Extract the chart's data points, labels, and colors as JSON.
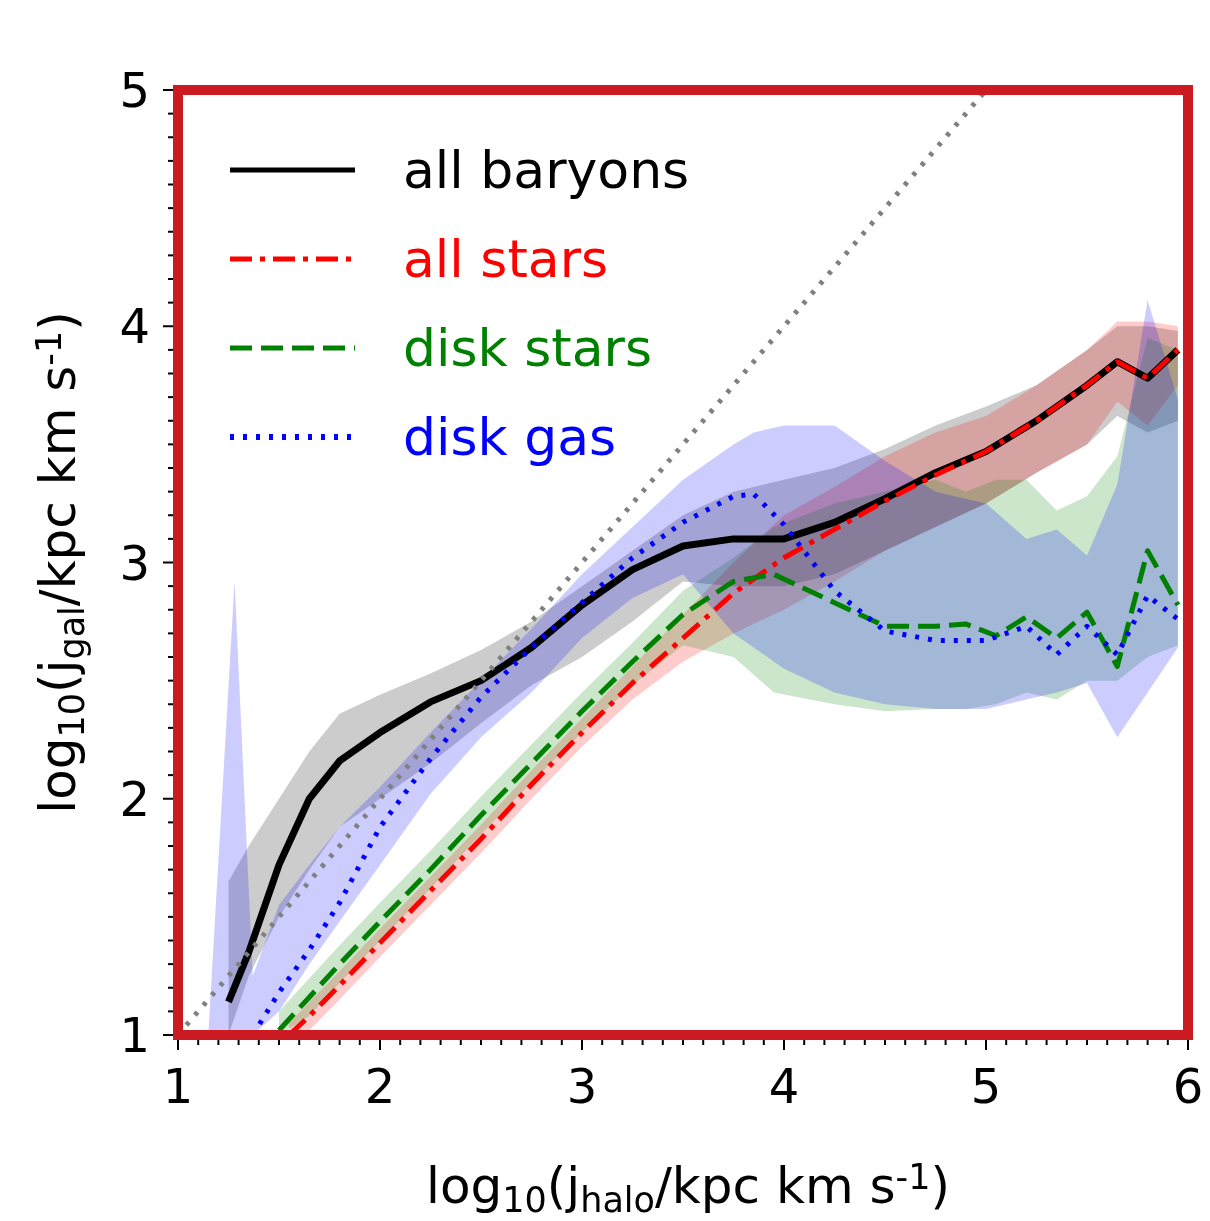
{
  "chart_data": {
    "type": "line",
    "xlabel": "log$_{10}$(j$_{halo}$/kpc km s$^{-1}$)",
    "ylabel": "log$_{10}$(j$_{gal}$/kpc km s$^{-1}$)",
    "xlim": [
      1,
      6
    ],
    "xticks": [
      1,
      2,
      3,
      4,
      5,
      6
    ],
    "ylim": [
      1,
      5
    ],
    "yticks": [
      1,
      2,
      3,
      4,
      5
    ],
    "grid": false,
    "legend": "top left",
    "series": [
      {
        "name": "all baryons",
        "color": "#000000",
        "line_style": "solid",
        "x": [
          1.25,
          1.35,
          1.5,
          1.65,
          1.8,
          2.0,
          2.25,
          2.5,
          2.75,
          3.0,
          3.25,
          3.5,
          3.75,
          4.0,
          4.25,
          4.5,
          4.75,
          5.0,
          5.25,
          5.5,
          5.65,
          5.8,
          5.95
        ],
        "values": [
          1.14,
          1.35,
          1.72,
          2.0,
          2.16,
          2.28,
          2.41,
          2.5,
          2.64,
          2.82,
          2.97,
          3.07,
          3.1,
          3.1,
          3.17,
          3.27,
          3.38,
          3.47,
          3.6,
          3.75,
          3.85,
          3.78,
          3.9
        ],
        "upper": [
          1.65,
          1.8,
          2.0,
          2.2,
          2.36,
          2.44,
          2.53,
          2.63,
          2.75,
          2.9,
          3.05,
          3.2,
          3.3,
          3.35,
          3.4,
          3.48,
          3.58,
          3.66,
          3.75,
          3.9,
          4.0,
          4.0,
          3.98
        ],
        "lower": [
          1.0,
          1.25,
          1.5,
          1.7,
          1.88,
          2.0,
          2.15,
          2.32,
          2.48,
          2.6,
          2.75,
          2.92,
          2.9,
          2.9,
          2.95,
          3.05,
          3.15,
          3.25,
          3.38,
          3.5,
          3.62,
          3.55,
          3.6
        ]
      },
      {
        "name": "all stars",
        "color": "#ff0000",
        "line_style": "dashdot",
        "x": [
          1.55,
          1.65,
          1.8,
          2.0,
          2.25,
          2.5,
          2.75,
          3.0,
          3.25,
          3.5,
          3.75,
          4.0,
          4.25,
          4.5,
          4.75,
          5.0,
          5.25,
          5.5,
          5.65,
          5.8,
          5.95
        ],
        "values": [
          1.0,
          1.08,
          1.21,
          1.39,
          1.61,
          1.83,
          2.06,
          2.28,
          2.49,
          2.68,
          2.87,
          3.02,
          3.14,
          3.26,
          3.37,
          3.47,
          3.6,
          3.75,
          3.85,
          3.78,
          3.9
        ],
        "upper": [
          1.05,
          1.14,
          1.27,
          1.45,
          1.67,
          1.89,
          2.12,
          2.34,
          2.56,
          2.78,
          3.0,
          3.2,
          3.32,
          3.45,
          3.55,
          3.62,
          3.75,
          3.9,
          4.02,
          4.02,
          4.0
        ],
        "lower": [
          1.0,
          1.02,
          1.15,
          1.33,
          1.55,
          1.77,
          2.0,
          2.22,
          2.42,
          2.58,
          2.7,
          2.8,
          2.92,
          3.05,
          3.15,
          3.25,
          3.38,
          3.5,
          3.68,
          3.58,
          3.75
        ]
      },
      {
        "name": "disk stars",
        "color": "#008000",
        "line_style": "dashed",
        "x": [
          1.5,
          1.65,
          1.8,
          2.0,
          2.25,
          2.5,
          2.75,
          3.0,
          3.25,
          3.5,
          3.75,
          3.95,
          4.25,
          4.5,
          4.75,
          4.9,
          5.05,
          5.2,
          5.35,
          5.5,
          5.65,
          5.8,
          5.95
        ],
        "values": [
          1.02,
          1.16,
          1.3,
          1.48,
          1.7,
          1.93,
          2.15,
          2.37,
          2.58,
          2.78,
          2.92,
          2.95,
          2.83,
          2.73,
          2.73,
          2.74,
          2.69,
          2.77,
          2.68,
          2.79,
          2.56,
          3.05,
          2.82
        ],
        "upper": [
          1.1,
          1.24,
          1.38,
          1.56,
          1.78,
          2.01,
          2.23,
          2.45,
          2.66,
          2.88,
          3.02,
          3.15,
          3.25,
          3.3,
          3.35,
          3.3,
          3.35,
          3.35,
          3.22,
          3.28,
          3.45,
          3.95,
          3.9
        ],
        "lower": [
          1.0,
          1.08,
          1.22,
          1.4,
          1.62,
          1.85,
          2.07,
          2.28,
          2.48,
          2.65,
          2.6,
          2.45,
          2.4,
          2.37,
          2.38,
          2.38,
          2.4,
          2.45,
          2.42,
          2.5,
          2.5,
          2.6,
          2.65
        ]
      },
      {
        "name": "disk gas",
        "color": "#0000ff",
        "line_style": "dotted",
        "x": [
          1.15,
          1.28,
          1.37,
          1.5,
          1.65,
          1.8,
          2.0,
          2.25,
          2.5,
          2.75,
          3.0,
          3.25,
          3.5,
          3.75,
          3.85,
          4.0,
          4.25,
          4.5,
          4.75,
          5.0,
          5.2,
          5.35,
          5.5,
          5.65,
          5.8,
          5.95
        ],
        "values": [
          null,
          null,
          1.0,
          1.18,
          1.36,
          1.56,
          1.88,
          2.17,
          2.43,
          2.64,
          2.83,
          3.02,
          3.17,
          3.28,
          3.29,
          3.16,
          2.88,
          2.71,
          2.67,
          2.67,
          2.73,
          2.61,
          2.73,
          2.61,
          2.86,
          2.76
        ],
        "upper": [
          1.0,
          2.92,
          1.25,
          1.55,
          1.72,
          1.88,
          2.05,
          2.28,
          2.5,
          2.72,
          2.95,
          3.15,
          3.35,
          3.5,
          3.55,
          3.58,
          3.58,
          3.43,
          3.3,
          3.25,
          3.1,
          3.14,
          3.03,
          3.33,
          4.11,
          3.69
        ],
        "lower": [
          1.0,
          1.0,
          1.0,
          1.1,
          1.3,
          1.48,
          1.72,
          2.02,
          2.26,
          2.45,
          2.68,
          2.85,
          2.95,
          2.7,
          2.64,
          2.55,
          2.45,
          2.4,
          2.38,
          2.38,
          2.42,
          2.45,
          2.49,
          2.26,
          2.45,
          2.64
        ]
      },
      {
        "color": "#808080",
        "line_style": "dotted",
        "x": [
          1,
          5
        ],
        "values": [
          1,
          5
        ]
      }
    ]
  }
}
